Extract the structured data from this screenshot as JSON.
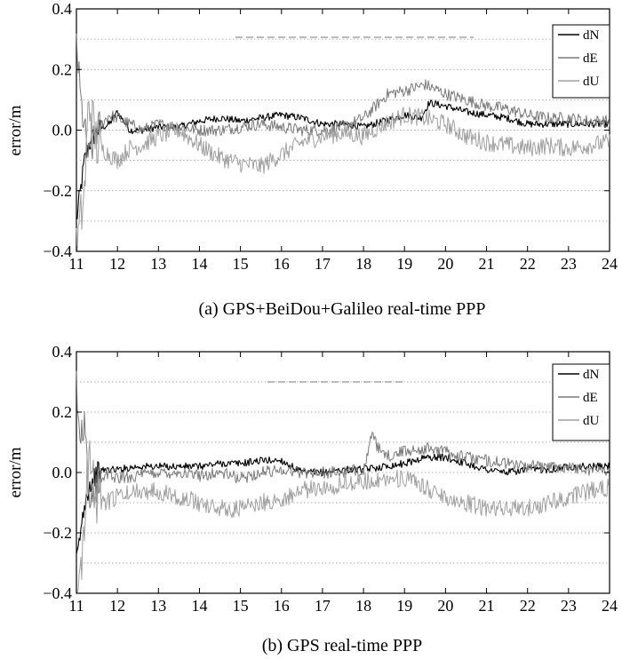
{
  "chart_data": [
    {
      "type": "line",
      "caption": "(a) GPS+BeiDou+Galileo real-time PPP",
      "ylabel": "error/m",
      "xlabel": "",
      "xlim": [
        11,
        24
      ],
      "ylim": [
        -0.4,
        0.4
      ],
      "xticks": [
        "11",
        "12",
        "13",
        "14",
        "15",
        "16",
        "17",
        "18",
        "19",
        "20",
        "21",
        "22",
        "23",
        "24"
      ],
      "yticks": [
        "0.4",
        "0.2",
        "0.0",
        "-0.2",
        "-0.4"
      ],
      "grid": "horizontal dotted",
      "legend_position": "top-right",
      "series": [
        {
          "name": "dN",
          "color": "#000000",
          "x": [
            11.0,
            11.1,
            11.2,
            11.3,
            11.5,
            11.8,
            12.0,
            12.3,
            12.6,
            13.0,
            13.5,
            14.0,
            14.5,
            15.0,
            15.5,
            16.0,
            16.5,
            17.0,
            17.5,
            18.0,
            18.5,
            19.0,
            19.4,
            19.6,
            20.0,
            20.5,
            21.0,
            21.5,
            22.0,
            22.5,
            23.0,
            23.5,
            24.0
          ],
          "y": [
            -0.3,
            -0.2,
            -0.1,
            -0.05,
            0.0,
            0.02,
            0.06,
            0.0,
            0.0,
            0.01,
            0.01,
            0.03,
            0.04,
            0.03,
            0.04,
            0.05,
            0.04,
            0.02,
            0.02,
            0.01,
            0.03,
            0.05,
            0.04,
            0.09,
            0.08,
            0.06,
            0.05,
            0.04,
            0.02,
            0.02,
            0.02,
            0.02,
            0.02
          ]
        },
        {
          "name": "dE",
          "color": "#7a7a7a",
          "x": [
            11.0,
            11.1,
            11.2,
            11.3,
            11.5,
            11.8,
            12.0,
            12.3,
            12.6,
            13.0,
            13.5,
            14.0,
            14.5,
            15.0,
            15.5,
            16.0,
            16.5,
            17.0,
            17.5,
            18.0,
            18.3,
            18.6,
            19.0,
            19.5,
            20.0,
            20.5,
            21.0,
            21.5,
            22.0,
            22.5,
            23.0,
            23.5,
            24.0
          ],
          "y": [
            0.3,
            0.1,
            0.0,
            -0.1,
            0.0,
            0.05,
            0.04,
            0.02,
            0.0,
            0.02,
            0.01,
            0.0,
            0.0,
            0.01,
            0.02,
            0.01,
            0.0,
            0.0,
            0.01,
            0.04,
            0.08,
            0.12,
            0.13,
            0.15,
            0.12,
            0.1,
            0.08,
            0.07,
            0.05,
            0.04,
            0.04,
            0.03,
            0.03
          ]
        },
        {
          "name": "dU",
          "color": "#a0a0a0",
          "x": [
            11.0,
            11.1,
            11.2,
            11.3,
            11.5,
            11.8,
            12.0,
            12.3,
            12.6,
            13.0,
            13.5,
            14.0,
            14.5,
            15.0,
            15.5,
            16.0,
            16.5,
            17.0,
            17.5,
            18.0,
            18.5,
            19.0,
            19.5,
            20.0,
            20.5,
            21.0,
            21.5,
            22.0,
            22.5,
            23.0,
            23.5,
            24.0
          ],
          "y": [
            -0.4,
            -0.3,
            -0.2,
            0.1,
            -0.05,
            -0.08,
            -0.1,
            -0.06,
            -0.05,
            -0.02,
            0.0,
            -0.05,
            -0.09,
            -0.11,
            -0.12,
            -0.08,
            -0.04,
            -0.02,
            -0.01,
            -0.02,
            0.02,
            0.05,
            0.04,
            0.02,
            -0.02,
            -0.04,
            -0.05,
            -0.06,
            -0.05,
            -0.06,
            -0.05,
            -0.04
          ]
        }
      ]
    },
    {
      "type": "line",
      "caption": "(b) GPS real-time PPP",
      "ylabel": "error/m",
      "xlabel": "",
      "xlim": [
        11,
        24
      ],
      "ylim": [
        -0.4,
        0.4
      ],
      "xticks": [
        "11",
        "12",
        "13",
        "14",
        "15",
        "16",
        "17",
        "18",
        "19",
        "20",
        "21",
        "22",
        "23",
        "24"
      ],
      "yticks": [
        "0.4",
        "0.2",
        "0.0",
        "-0.2",
        "-0.4"
      ],
      "grid": "horizontal dotted",
      "legend_position": "top-right",
      "series": [
        {
          "name": "dN",
          "color": "#000000",
          "x": [
            11.0,
            11.1,
            11.2,
            11.3,
            11.5,
            11.7,
            12.0,
            12.5,
            13.0,
            13.5,
            14.0,
            14.5,
            15.0,
            15.5,
            16.0,
            16.5,
            17.0,
            17.5,
            18.0,
            18.5,
            19.0,
            19.5,
            20.0,
            20.5,
            21.0,
            21.5,
            22.0,
            22.5,
            23.0,
            23.5,
            24.0
          ],
          "y": [
            -0.3,
            -0.2,
            -0.1,
            -0.05,
            0.0,
            0.01,
            0.01,
            0.02,
            0.02,
            0.02,
            0.02,
            0.03,
            0.03,
            0.04,
            0.04,
            0.0,
            0.0,
            0.01,
            0.01,
            0.02,
            0.03,
            0.05,
            0.05,
            0.03,
            0.01,
            0.0,
            0.01,
            0.01,
            0.02,
            0.02,
            0.02
          ]
        },
        {
          "name": "dE",
          "color": "#7a7a7a",
          "x": [
            11.0,
            11.1,
            11.2,
            11.3,
            11.5,
            11.7,
            12.0,
            12.5,
            13.0,
            13.5,
            14.0,
            14.5,
            15.0,
            15.5,
            16.0,
            16.5,
            17.0,
            17.5,
            18.0,
            18.2,
            18.5,
            19.0,
            19.5,
            20.0,
            20.5,
            21.0,
            21.5,
            22.0,
            22.5,
            23.0,
            23.5,
            24.0
          ],
          "y": [
            0.3,
            0.1,
            0.15,
            -0.1,
            -0.05,
            0.0,
            -0.02,
            -0.01,
            0.0,
            0.0,
            -0.01,
            0.0,
            -0.02,
            0.0,
            0.01,
            0.0,
            0.0,
            0.0,
            0.01,
            0.12,
            0.05,
            0.07,
            0.08,
            0.07,
            0.05,
            0.04,
            0.03,
            0.02,
            0.02,
            0.02,
            0.01,
            0.01
          ]
        },
        {
          "name": "dU",
          "color": "#a0a0a0",
          "x": [
            11.0,
            11.1,
            11.2,
            11.3,
            11.5,
            11.7,
            12.0,
            12.5,
            13.0,
            13.5,
            14.0,
            14.5,
            15.0,
            15.5,
            16.0,
            16.5,
            17.0,
            17.5,
            18.0,
            18.5,
            19.0,
            19.5,
            20.0,
            20.5,
            21.0,
            21.5,
            22.0,
            22.5,
            23.0,
            23.5,
            24.0
          ],
          "y": [
            -0.4,
            -0.35,
            -0.2,
            0.1,
            -0.1,
            -0.1,
            -0.08,
            -0.06,
            -0.06,
            -0.08,
            -0.1,
            -0.12,
            -0.12,
            -0.1,
            -0.09,
            -0.06,
            -0.05,
            -0.04,
            -0.03,
            -0.02,
            -0.02,
            -0.05,
            -0.08,
            -0.1,
            -0.12,
            -0.12,
            -0.12,
            -0.1,
            -0.08,
            -0.06,
            -0.05
          ]
        }
      ]
    }
  ]
}
